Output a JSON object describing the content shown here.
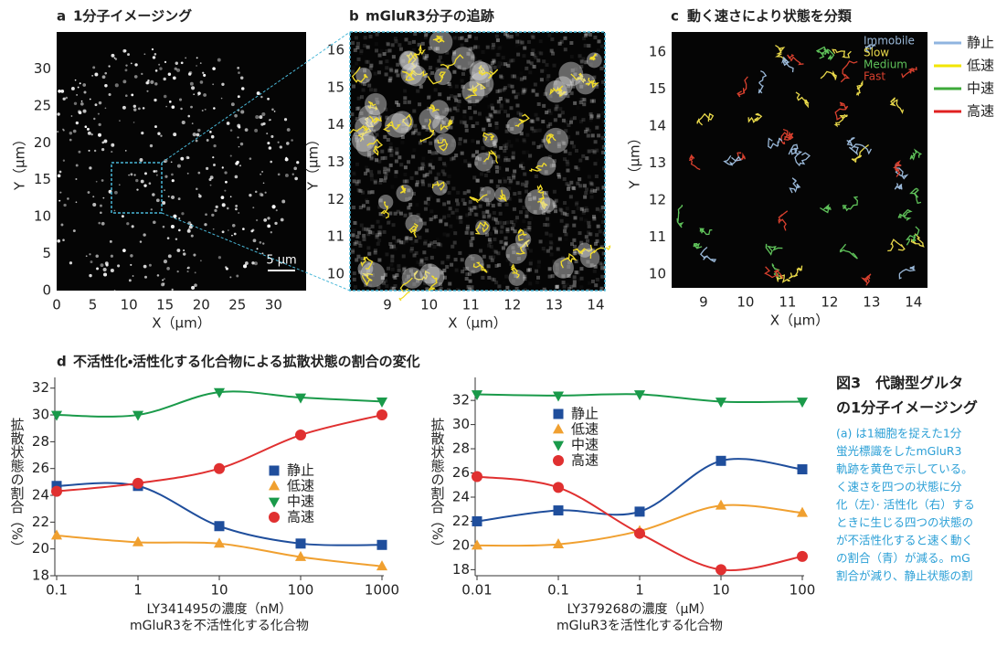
{
  "chart_data": [
    {
      "type": "image",
      "panel": "a",
      "title": "1分子イメージング",
      "xlabel": "X（μm）",
      "ylabel": "Y（μm）",
      "xlim": [
        0,
        34.5
      ],
      "ylim": [
        0,
        35
      ],
      "xticks": [
        0,
        5,
        10,
        15,
        20,
        25,
        30
      ],
      "yticks": [
        0,
        5,
        10,
        15,
        20,
        25,
        30
      ],
      "scale_bar": "5 μm"
    },
    {
      "type": "image",
      "panel": "b",
      "title": "mGluR3分子の追跡",
      "xlabel": "X（μm）",
      "ylabel": "Y（μm）",
      "xlim": [
        8.1,
        14.22
      ],
      "ylim": [
        9.56,
        16.49
      ],
      "xticks": [
        9,
        10,
        11,
        12,
        13,
        14
      ],
      "yticks": [
        10,
        11,
        12,
        13,
        14,
        15,
        16
      ]
    },
    {
      "type": "image",
      "panel": "c",
      "title": "動く速さにより状態を分類",
      "xlabel": "X（μm）",
      "ylabel": "Y（μm）",
      "xlim": [
        8.24,
        14.33
      ],
      "ylim": [
        9.63,
        16.54
      ],
      "xticks": [
        9,
        10,
        11,
        12,
        13,
        14
      ],
      "yticks": [
        10,
        11,
        12,
        13,
        14,
        15,
        16
      ],
      "inset_legend": [
        {
          "name": "Immobile",
          "color": "#9ab8d8"
        },
        {
          "name": "Slow",
          "color": "#e8d84a"
        },
        {
          "name": "Medium",
          "color": "#5fc25a"
        },
        {
          "name": "Fast",
          "color": "#d8402e"
        }
      ],
      "series": [
        {
          "name": "静止",
          "color": "#8fb4e0"
        },
        {
          "name": "低速",
          "color": "#f2e600"
        },
        {
          "name": "中速",
          "color": "#3daa3a"
        },
        {
          "name": "高速",
          "color": "#e02020"
        }
      ]
    },
    {
      "type": "line",
      "panel": "d",
      "title": "不活性化・活性化する化合物による拡散状態の割合の変化",
      "xlabel": [
        "LY341495の濃度（nM）",
        "mGluR3を不活性化する化合物"
      ],
      "ylabel": "拡散状態の割合（%）",
      "xlog": true,
      "x": [
        0.1,
        1,
        10,
        100,
        1000
      ],
      "xlim": [
        0.1,
        1000
      ],
      "xticks": [
        0.1,
        1,
        10,
        100,
        1000
      ],
      "ylim": [
        18,
        32.8
      ],
      "yticks": [
        18,
        20,
        22,
        24,
        26,
        28,
        30,
        32
      ],
      "legend": "center right",
      "series": [
        {
          "name": "静止",
          "color": "#1f4e9c",
          "marker": "square",
          "values": [
            24.7,
            24.7,
            21.7,
            20.4,
            20.3
          ]
        },
        {
          "name": "低速",
          "color": "#f0a030",
          "marker": "triangle-up",
          "values": [
            21.0,
            20.5,
            20.4,
            19.4,
            18.7
          ]
        },
        {
          "name": "中速",
          "color": "#1a9a4a",
          "marker": "triangle-down",
          "values": [
            30.0,
            30.0,
            31.7,
            31.3,
            31.0
          ]
        },
        {
          "name": "高速",
          "color": "#e03030",
          "marker": "circle",
          "values": [
            24.3,
            24.9,
            26.0,
            28.5,
            30.0
          ]
        }
      ]
    },
    {
      "type": "line",
      "xlabel": [
        "LY379268の濃度（μM）",
        "mGluR3を活性化する化合物"
      ],
      "ylabel": "拡散状態の割合（%）",
      "xlog": true,
      "x": [
        0.01,
        0.1,
        1,
        10,
        100
      ],
      "xlim": [
        0.01,
        100
      ],
      "xticks": [
        0.01,
        0.1,
        1,
        10,
        100
      ],
      "ylim": [
        17.5,
        33.9
      ],
      "yticks": [
        18,
        20,
        22,
        24,
        26,
        28,
        30,
        32
      ],
      "legend": "upper center",
      "series": [
        {
          "name": "静止",
          "color": "#1f4e9c",
          "marker": "square",
          "values": [
            22.0,
            22.9,
            22.8,
            27.0,
            26.3
          ]
        },
        {
          "name": "低速",
          "color": "#f0a030",
          "marker": "triangle-up",
          "values": [
            20.0,
            20.1,
            21.2,
            23.3,
            22.7
          ]
        },
        {
          "name": "中速",
          "color": "#1a9a4a",
          "marker": "triangle-down",
          "values": [
            32.5,
            32.4,
            32.5,
            31.9,
            31.9
          ]
        },
        {
          "name": "高速",
          "color": "#e03030",
          "marker": "circle",
          "values": [
            25.7,
            24.8,
            21.0,
            18.0,
            19.1
          ]
        }
      ]
    }
  ],
  "caption": {
    "title": [
      "図3　代謝型グルタ",
      "の1分子イメージング"
    ],
    "lines": [
      "(a) は1細胞を捉えた1分",
      "蛍光標識をしたmGluR3",
      "軌跡を黄色で示している。",
      "く速さを四つの状態に分",
      "化（左）· 活性化（右）する",
      "ときに生じる四つの状態の",
      "が不活性化すると速く動く",
      "の割合（青）が減る。mG",
      "割合が減り、静止状態の割"
    ]
  }
}
